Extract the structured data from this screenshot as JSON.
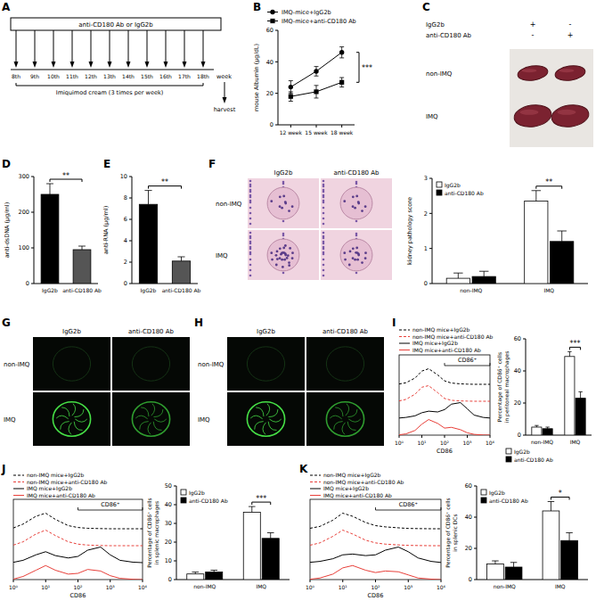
{
  "panel_labels": [
    "A",
    "B",
    "C",
    "D",
    "E",
    "F",
    "G",
    "H",
    "I",
    "J",
    "K"
  ],
  "timeline": {
    "bar_label": "anti-CD180 Ab or IgG2b",
    "weeks": [
      "8th",
      "9th",
      "10th",
      "11th",
      "12th",
      "13th",
      "14th",
      "15th",
      "16th",
      "17th",
      "18th"
    ],
    "axis_label": "week",
    "treatment_label": "Imiquimod cream (3 times per week)",
    "end_label": "harvest"
  },
  "spleen_photo": {
    "rows": [
      "IgG2b",
      "anti-CD180 Ab"
    ],
    "signs": [
      [
        "+",
        "-"
      ],
      [
        "-",
        "+"
      ]
    ],
    "groups": [
      "non-IMQ",
      "IMQ"
    ]
  },
  "micrographs": {
    "F": {
      "columns": [
        "IgG2b",
        "anti-CD180 Ab"
      ],
      "rows": [
        "non-IMQ",
        "IMQ"
      ]
    },
    "G": {
      "columns": [
        "IgG2b",
        "anti-CD180 Ab"
      ],
      "rows": [
        "non-IMQ",
        "IMQ"
      ]
    },
    "H": {
      "columns": [
        "IgG2b",
        "anti-CD180 Ab"
      ],
      "rows": [
        "non-IMQ",
        "IMQ"
      ]
    }
  },
  "chart_data": [
    {
      "type": "line",
      "ylabel": "mouse Albumin (μg/dL)",
      "categories": [
        "12 week",
        "15 week",
        "18 week"
      ],
      "series": [
        {
          "name": "IMQ-mice+IgG2b",
          "color": "#000000",
          "marker": "circle",
          "values": [
            24,
            34,
            46
          ],
          "errors": [
            4,
            3,
            3.5
          ]
        },
        {
          "name": "IMQ-mice+anti-CD180 Ab",
          "color": "#000000",
          "marker": "square",
          "values": [
            18,
            21,
            27
          ],
          "errors": [
            3,
            4,
            3
          ]
        }
      ],
      "ylim": [
        0,
        60
      ],
      "yticks": [
        0,
        20,
        40,
        60
      ],
      "legend": "top",
      "annotations": [
        "***"
      ]
    },
    {
      "type": "bar",
      "ylabel": "anti-dsDNA (μg/ml)",
      "categories": [
        "IgG2b",
        "anti-CD180 Ab"
      ],
      "values": [
        250,
        95
      ],
      "errors": [
        30,
        10
      ],
      "colors": [
        "#000000",
        "#555555"
      ],
      "ylim": [
        0,
        300
      ],
      "yticks": [
        0,
        100,
        200,
        300
      ],
      "annotations": [
        "**"
      ]
    },
    {
      "type": "bar",
      "ylabel": "anti-RNA (μg/ml)",
      "categories": [
        "IgG2b",
        "anti-CD180 Ab"
      ],
      "values": [
        7.4,
        2.1
      ],
      "errors": [
        1.3,
        0.4
      ],
      "colors": [
        "#000000",
        "#555555"
      ],
      "ylim": [
        0,
        10
      ],
      "yticks": [
        0,
        2,
        4,
        6,
        8,
        10
      ],
      "annotations": [
        "**"
      ]
    },
    {
      "type": "bar",
      "ylabel": "kidney pathology score",
      "categories": [
        "non-IMQ",
        "IMQ"
      ],
      "series": [
        {
          "name": "IgG2b",
          "color": "#ffffff",
          "values": [
            0.15,
            2.35
          ],
          "errors": [
            0.15,
            0.3
          ]
        },
        {
          "name": "anti-CD180 Ab",
          "color": "#000000",
          "values": [
            0.2,
            1.2
          ],
          "errors": [
            0.15,
            0.3
          ]
        }
      ],
      "ylim": [
        0,
        3
      ],
      "yticks": [
        0,
        1,
        2,
        3
      ],
      "legend": "upper left",
      "annotations": [
        "**"
      ]
    },
    {
      "type": "line",
      "log": "x",
      "xlabel": "CD86",
      "tick_labels": "x",
      "gate": {
        "label": "CD86⁺",
        "range": [
          100,
          10000
        ]
      },
      "x": [
        1,
        2,
        5,
        10,
        20,
        50,
        100,
        200,
        500,
        1000,
        2000,
        5000,
        10000
      ],
      "xlim": [
        1,
        10000
      ],
      "xticks": [
        {
          "value": 1,
          "label": "10⁰"
        },
        {
          "value": 10,
          "label": "10¹"
        },
        {
          "value": 100,
          "label": "10²"
        },
        {
          "value": 1000,
          "label": "10³"
        },
        {
          "value": 10000,
          "label": "10⁴"
        }
      ],
      "ylim": [
        0,
        100
      ],
      "series": [
        {
          "name": "non-IMQ mice+IgG2b",
          "color": "#000000",
          "line_style": "dashed",
          "values": [
            2,
            10,
            40,
            85,
            100,
            60,
            22,
            8,
            3,
            1,
            0,
            0,
            0
          ]
        },
        {
          "name": "non-IMQ mice+anti-CD180 Ab",
          "color": "#e8403a",
          "line_style": "dashed",
          "values": [
            2,
            12,
            45,
            90,
            100,
            55,
            18,
            6,
            2,
            1,
            0,
            0,
            0
          ]
        },
        {
          "name": "IMQ mice+IgG2b",
          "color": "#000000",
          "line_style": "solid",
          "values": [
            1,
            5,
            15,
            35,
            45,
            40,
            55,
            90,
            100,
            60,
            20,
            5,
            1
          ]
        },
        {
          "name": "IMQ mice+anti-CD180 Ab",
          "color": "#e8403a",
          "line_style": "solid",
          "values": [
            2,
            8,
            30,
            70,
            100,
            75,
            45,
            50,
            35,
            15,
            5,
            1,
            0
          ]
        }
      ]
    },
    {
      "type": "bar",
      "ylabel": [
        "Percentage of CD86⁺ cells",
        "in peritoneal macrophages"
      ],
      "categories": [
        "non-IMQ",
        "IMQ"
      ],
      "series": [
        {
          "name": "IgG2b",
          "color": "#ffffff",
          "values": [
            5,
            49
          ],
          "errors": [
            1,
            3
          ]
        },
        {
          "name": "anti-CD180 Ab",
          "color": "#000000",
          "values": [
            4,
            23
          ],
          "errors": [
            1,
            4
          ]
        }
      ],
      "ylim": [
        0,
        60
      ],
      "yticks": [
        0,
        20,
        40,
        60
      ],
      "legend": "bottom",
      "annotations": [
        "***"
      ]
    },
    {
      "type": "line",
      "log": "x",
      "xlabel": "CD86",
      "tick_labels": "x",
      "gate": {
        "label": "CD86⁺",
        "range": [
          100,
          10000
        ]
      },
      "x": [
        1,
        2,
        5,
        10,
        20,
        50,
        100,
        200,
        500,
        1000,
        2000,
        5000,
        10000
      ],
      "xlim": [
        1,
        10000
      ],
      "xticks": [
        {
          "value": 1,
          "label": "10⁰"
        },
        {
          "value": 10,
          "label": "10¹"
        },
        {
          "value": 100,
          "label": "10²"
        },
        {
          "value": 1000,
          "label": "10³"
        },
        {
          "value": 10000,
          "label": "10⁴"
        }
      ],
      "ylim": [
        0,
        100
      ],
      "series": [
        {
          "name": "non-IMQ mice+IgG2b",
          "color": "#000000",
          "line_style": "dashed",
          "values": [
            5,
            30,
            80,
            100,
            60,
            20,
            8,
            3,
            1,
            0,
            0,
            0,
            0
          ]
        },
        {
          "name": "non-IMQ mice+anti-CD180 Ab",
          "color": "#e8403a",
          "line_style": "dashed",
          "values": [
            4,
            25,
            75,
            100,
            65,
            25,
            10,
            4,
            1,
            0,
            0,
            0,
            0
          ]
        },
        {
          "name": "IMQ mice+IgG2b",
          "color": "#000000",
          "line_style": "solid",
          "values": [
            2,
            15,
            50,
            70,
            45,
            30,
            40,
            80,
            100,
            50,
            15,
            3,
            0
          ]
        },
        {
          "name": "IMQ mice+anti-CD180 Ab",
          "color": "#e8403a",
          "line_style": "solid",
          "values": [
            3,
            20,
            60,
            90,
            60,
            35,
            40,
            65,
            55,
            25,
            8,
            2,
            0
          ]
        }
      ]
    },
    {
      "type": "bar",
      "ylabel": [
        "Percentage of CD86⁺ cells",
        "in splenic macrophages"
      ],
      "categories": [
        "non-IMQ",
        "IMQ"
      ],
      "series": [
        {
          "name": "IgG2b",
          "color": "#ffffff",
          "values": [
            3,
            36
          ],
          "errors": [
            1,
            3
          ]
        },
        {
          "name": "anti-CD180 Ab",
          "color": "#000000",
          "values": [
            4,
            22
          ],
          "errors": [
            1,
            3
          ]
        }
      ],
      "ylim": [
        0,
        50
      ],
      "yticks": [
        0,
        10,
        20,
        30,
        40,
        50
      ],
      "legend": "upper left",
      "annotations": [
        "***"
      ]
    },
    {
      "type": "line",
      "log": "x",
      "xlabel": "CD86",
      "tick_labels": "x",
      "gate": {
        "label": "CD86⁺",
        "range": [
          100,
          10000
        ]
      },
      "x": [
        1,
        2,
        5,
        10,
        20,
        50,
        100,
        200,
        500,
        1000,
        2000,
        5000,
        10000
      ],
      "xlim": [
        1,
        10000
      ],
      "xticks": [
        {
          "value": 1,
          "label": "10⁰"
        },
        {
          "value": 10,
          "label": "10¹"
        },
        {
          "value": 100,
          "label": "10²"
        },
        {
          "value": 1000,
          "label": "10³"
        },
        {
          "value": 10000,
          "label": "10⁴"
        }
      ],
      "ylim": [
        0,
        100
      ],
      "series": [
        {
          "name": "non-IMQ mice+IgG2b",
          "color": "#000000",
          "line_style": "dashed",
          "values": [
            3,
            15,
            55,
            100,
            80,
            40,
            20,
            12,
            6,
            2,
            1,
            0,
            0
          ]
        },
        {
          "name": "non-IMQ mice+anti-CD180 Ab",
          "color": "#e8403a",
          "line_style": "dashed",
          "values": [
            3,
            18,
            60,
            100,
            75,
            35,
            18,
            10,
            5,
            2,
            1,
            0,
            0
          ]
        },
        {
          "name": "IMQ mice+IgG2b",
          "color": "#000000",
          "line_style": "solid",
          "values": [
            2,
            8,
            25,
            50,
            55,
            45,
            50,
            80,
            100,
            70,
            30,
            8,
            1
          ]
        },
        {
          "name": "IMQ mice+anti-CD180 Ab",
          "color": "#e8403a",
          "line_style": "solid",
          "values": [
            2,
            10,
            35,
            75,
            90,
            60,
            45,
            55,
            50,
            30,
            10,
            3,
            0
          ]
        }
      ]
    },
    {
      "type": "bar",
      "ylabel": [
        "Percentage of CD86⁺ cells",
        "in splenic DCs"
      ],
      "categories": [
        "non-IMQ",
        "IMQ"
      ],
      "series": [
        {
          "name": "IgG2b",
          "color": "#ffffff",
          "values": [
            10,
            44
          ],
          "errors": [
            2,
            6
          ]
        },
        {
          "name": "anti-CD180 Ab",
          "color": "#000000",
          "values": [
            8,
            25
          ],
          "errors": [
            3,
            5
          ]
        }
      ],
      "ylim": [
        0,
        60
      ],
      "yticks": [
        0,
        20,
        40,
        60
      ],
      "legend": "upper left",
      "annotations": [
        "*"
      ]
    }
  ]
}
